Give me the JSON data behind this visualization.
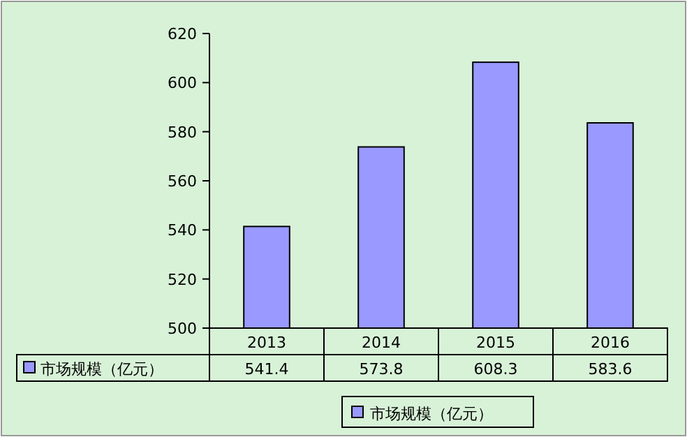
{
  "chart_data": {
    "type": "bar",
    "categories": [
      "2013",
      "2014",
      "2015",
      "2016"
    ],
    "series": [
      {
        "name": "市场规模（亿元）",
        "color": "#9999ff",
        "values": [
          541.4,
          573.8,
          608.3,
          583.6
        ]
      }
    ],
    "ylim": [
      500,
      620
    ],
    "yticks": [
      500,
      520,
      540,
      560,
      580,
      600,
      620
    ],
    "data_labels": true,
    "legend": "bottom",
    "grid": false
  }
}
